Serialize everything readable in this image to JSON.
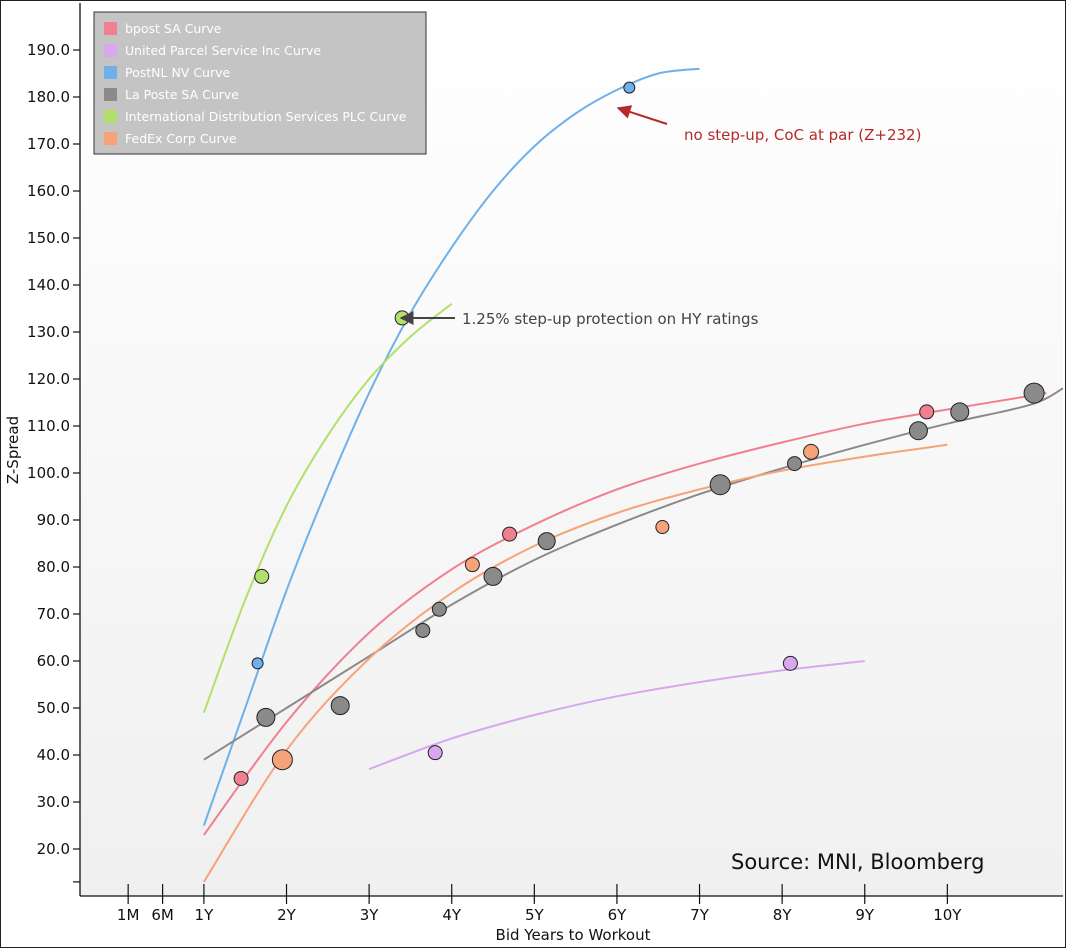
{
  "chart_data": {
    "type": "scatter",
    "title": "",
    "xlabel": "Bid Years to Workout",
    "ylabel": "Z-Spread",
    "ylim": [
      10,
      200
    ],
    "xlim": [
      -0.5,
      11.4
    ],
    "grid": false,
    "legend_position": "top-left",
    "y_ticks": [
      20,
      30,
      40,
      50,
      60,
      70,
      80,
      90,
      100,
      110,
      120,
      130,
      140,
      150,
      160,
      170,
      180,
      190
    ],
    "y_tick_labels": [
      "20.0",
      "30.0",
      "40.0",
      "50.0",
      "60.0",
      "70.0",
      "80.0",
      "90.0",
      "100.0",
      "110.0",
      "120.0",
      "130.0",
      "140.0",
      "150.0",
      "160.0",
      "170.0",
      "180.0",
      "190.0"
    ],
    "x_ticks": [
      {
        "label": "1M",
        "value": 0.083
      },
      {
        "label": "6M",
        "value": 0.5
      },
      {
        "label": "1Y",
        "value": 1
      },
      {
        "label": "2Y",
        "value": 2
      },
      {
        "label": "3Y",
        "value": 3
      },
      {
        "label": "4Y",
        "value": 4
      },
      {
        "label": "5Y",
        "value": 5
      },
      {
        "label": "6Y",
        "value": 6
      },
      {
        "label": "7Y",
        "value": 7
      },
      {
        "label": "8Y",
        "value": 8
      },
      {
        "label": "9Y",
        "value": 9
      },
      {
        "label": "10Y",
        "value": 10
      }
    ],
    "series": [
      {
        "name": "bpost SA Curve",
        "color": "#f07f8f",
        "points": [
          [
            1.45,
            35,
            7
          ],
          [
            4.7,
            87,
            7
          ],
          [
            9.75,
            113,
            7
          ]
        ],
        "curve": [
          [
            1,
            23
          ],
          [
            2,
            47
          ],
          [
            3,
            66
          ],
          [
            4,
            79.5
          ],
          [
            5,
            89
          ],
          [
            6,
            96.5
          ],
          [
            7,
            102
          ],
          [
            8,
            106.5
          ],
          [
            9,
            110.5
          ],
          [
            10,
            113.5
          ],
          [
            11.2,
            117
          ]
        ]
      },
      {
        "name": "United Parcel Service Inc Curve",
        "color": "#d9a7ee",
        "points": [
          [
            3.8,
            40.5,
            7
          ],
          [
            8.1,
            59.5,
            7
          ]
        ],
        "curve": [
          [
            3,
            37
          ],
          [
            4,
            43.5
          ],
          [
            5,
            48.5
          ],
          [
            6,
            52.5
          ],
          [
            7,
            55.5
          ],
          [
            8,
            58
          ],
          [
            9,
            60
          ]
        ]
      },
      {
        "name": "PostNL NV Curve",
        "color": "#6fb0ea",
        "points": [
          [
            1.65,
            59.5,
            5.5
          ],
          [
            6.15,
            182,
            5.5
          ]
        ],
        "curve": [
          [
            1,
            25
          ],
          [
            1.5,
            50
          ],
          [
            2,
            75
          ],
          [
            2.5,
            97
          ],
          [
            3,
            117
          ],
          [
            3.5,
            134
          ],
          [
            4,
            148
          ],
          [
            4.5,
            160
          ],
          [
            5,
            169.5
          ],
          [
            5.5,
            176.5
          ],
          [
            6,
            181.5
          ],
          [
            6.5,
            185
          ],
          [
            7,
            186
          ]
        ]
      },
      {
        "name": "La Poste SA Curve",
        "color": "#8a8a8a",
        "points": [
          [
            1.75,
            48,
            9
          ],
          [
            2.65,
            50.5,
            9
          ],
          [
            3.65,
            66.5,
            7
          ],
          [
            3.85,
            71,
            7
          ],
          [
            4.5,
            78,
            9
          ],
          [
            5.15,
            85.5,
            8.5
          ],
          [
            7.25,
            97.5,
            10
          ],
          [
            8.15,
            102,
            7
          ],
          [
            9.65,
            109,
            9
          ],
          [
            10.15,
            113,
            9
          ],
          [
            11.05,
            117,
            10
          ]
        ],
        "curve": [
          [
            1,
            39
          ],
          [
            2,
            50
          ],
          [
            3,
            61
          ],
          [
            4,
            72
          ],
          [
            5,
            81.5
          ],
          [
            6,
            89
          ],
          [
            7,
            95.5
          ],
          [
            8,
            101
          ],
          [
            9,
            106
          ],
          [
            10,
            110.5
          ],
          [
            11,
            114.5
          ],
          [
            11.4,
            118
          ]
        ]
      },
      {
        "name": "International Distribution Services PLC Curve",
        "color": "#b2e06b",
        "points": [
          [
            1.7,
            78,
            7
          ],
          [
            3.4,
            133,
            7
          ]
        ],
        "curve": [
          [
            1,
            49
          ],
          [
            1.5,
            73
          ],
          [
            2,
            93
          ],
          [
            2.5,
            108
          ],
          [
            3,
            120
          ],
          [
            3.5,
            129
          ],
          [
            4,
            136
          ]
        ]
      },
      {
        "name": "FedEx Corp Curve",
        "color": "#f7a37a",
        "points": [
          [
            1.95,
            39,
            10
          ],
          [
            4.25,
            80.5,
            7
          ],
          [
            6.55,
            88.5,
            6.5
          ],
          [
            8.35,
            104.5,
            7.5
          ]
        ],
        "curve": [
          [
            1,
            13
          ],
          [
            2,
            41
          ],
          [
            3,
            60.5
          ],
          [
            4,
            74.5
          ],
          [
            5,
            84.5
          ],
          [
            6,
            91.5
          ],
          [
            7,
            96.5
          ],
          [
            8,
            100.5
          ],
          [
            9,
            103.5
          ],
          [
            10,
            106
          ]
        ]
      }
    ],
    "annotations": [
      {
        "text": "no step-up, CoC at par (Z+232)",
        "color": "#b52a2a",
        "target": [
          6.55,
          179.5
        ]
      },
      {
        "text": "1.25% step-up protection on HY ratings",
        "color": "#444444",
        "target": [
          3.75,
          132.8
        ]
      }
    ],
    "source": "Source: MNI, Bloomberg"
  }
}
